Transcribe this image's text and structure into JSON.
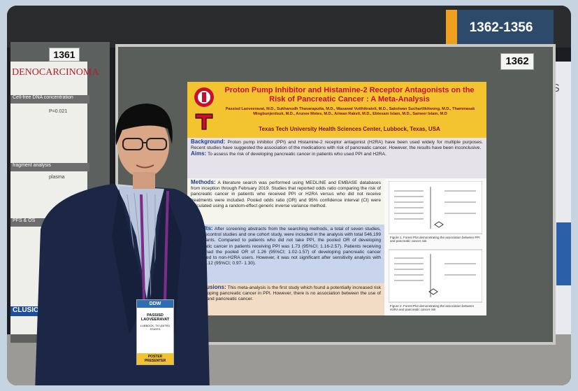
{
  "signs": {
    "range": "1362-1356",
    "left_board": "1361",
    "right_board": "1362",
    "edge": "S"
  },
  "left_poster": {
    "title": "DENOCARCINOMA",
    "line1": "Cell-free DNA concentration",
    "line2": "P=0.021",
    "line3": "fragment analysis",
    "line4": "plasma",
    "line5": "PFS & OS",
    "footer": "CLUSIONS"
  },
  "poster": {
    "title": "Proton Pump Inhibitor and Histamine-2 Receptor Antagonists on the Risk of Pancreatic Cancer : A Meta-Analysis",
    "authors": "Passisd Laoveeravat, M.D., Sukhanudh Thavaraputta, M.D., Wasawat Vutthikraivit, M.D., Sakolwan Suchartlikitwong, M.D., Thammasak Mingbunjerdsuk, M.D., Arunee Motes, M.D., Ariwan Rakvit, M.D., Ebtesam Islam, M.D., Sameer Islam, M.D",
    "affiliation": "Texas Tech University Health Sciences Center, Lubbock, Texas, USA",
    "sections": [
      {
        "label": "Background:",
        "text": "Proton pump inhibitor (PPI) and Histamine-2 receptor antagonist (H2RA) have been used widely for multiple purposes. Recent studies have suggested the association of the medications with risk of pancreatic cancer. However, the results have been inconclusive."
      },
      {
        "label": "Aims:",
        "text": "To assess the risk of developing pancreatic cancer in patients who used PPI and H2RA."
      },
      {
        "label": "Methods:",
        "text": "A literature search was performed using MEDLINE and EMBASE databases from inception through February 2019. Studies that reported odds ratio comparing the risk of pancreatic cancer in patients who received PPI or H2RA versus who did not receive treatments were included. Pooled odds ratio (OR) and 95% confidence interval (CI) were calculated using a random-effect generic inverse variance method."
      },
      {
        "label": "Results:",
        "text": "After screening abstracts from the searching methods, a total of seven studies, six casecontrol studies and one cohort study, were included in the analysis with total 546,199 participants. Compared to patients who did not take PPI, the pooled OR of developing pancreatic cancer in patients receiving PPI was 1.73 (95%CI; 1.16-2.57). Patients receiving H2RA had the pooled OR of 1.26 (95%CI; 1.02-1.57) of developing pancreatic cancer compared to non-H2RA users. However, it was not significant after sensitivity analysis with OR of 1.12 (95%CI; 0.97- 1.30)."
      },
      {
        "label": "Conclusions:",
        "text": "This meta-analysis is the first study which found a potentially increased risk of developing pancreatic cancer in PPI. However, there is no association between the use of H2RAs and pancreatic cancer."
      }
    ],
    "figures": [
      "Figure 1. Forest Plot demonstrating the association between PPI and pancreatic cancer risk",
      "Figure 2. Forest Plot demonstrating the association between H2RA and pancreatic cancer risk"
    ]
  },
  "badge": {
    "event": "DDW",
    "name": "PASSISD LAOVEERAVAT",
    "place": "LUBBOCK, TX UNITED STATES",
    "ribbon": "POSTER PRESENTER"
  }
}
